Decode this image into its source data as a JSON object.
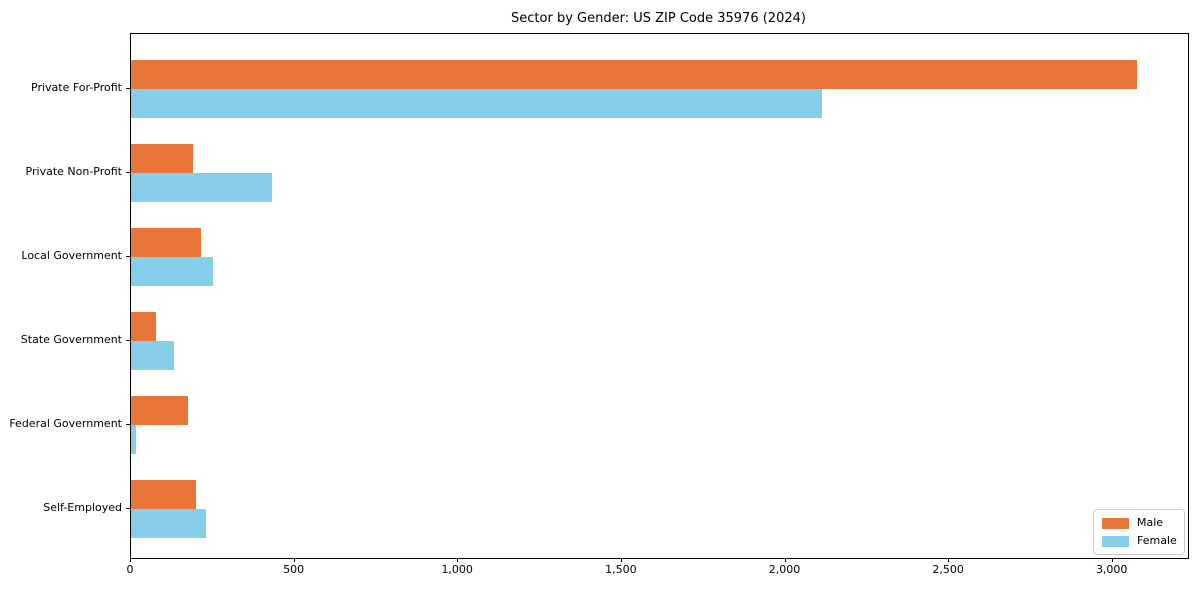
{
  "title": "Sector by Gender: US ZIP Code 35976 (2024)",
  "chart_data": {
    "type": "bar",
    "orientation": "horizontal",
    "title": "Sector by Gender: US ZIP Code 35976 (2024)",
    "categories": [
      "Private For-Profit",
      "Private Non-Profit",
      "Local Government",
      "State Government",
      "Federal Government",
      "Self-Employed"
    ],
    "series": [
      {
        "name": "Male",
        "color": "#E8763B",
        "values": [
          3075,
          190,
          215,
          76,
          175,
          200
        ]
      },
      {
        "name": "Female",
        "color": "#87CEEB",
        "values": [
          2110,
          430,
          250,
          130,
          15,
          228
        ]
      }
    ],
    "xlabel": "",
    "ylabel": "",
    "xlim": [
      0,
      3230
    ],
    "x_ticks": [
      0,
      500,
      1000,
      1500,
      2000,
      2500,
      3000
    ],
    "x_tick_labels": [
      "0",
      "500",
      "1,000",
      "1,500",
      "2,000",
      "2,500",
      "3,000"
    ],
    "grid": false,
    "legend_position": "lower right",
    "background_color": "#ffffff",
    "axis_color": "#000000"
  }
}
